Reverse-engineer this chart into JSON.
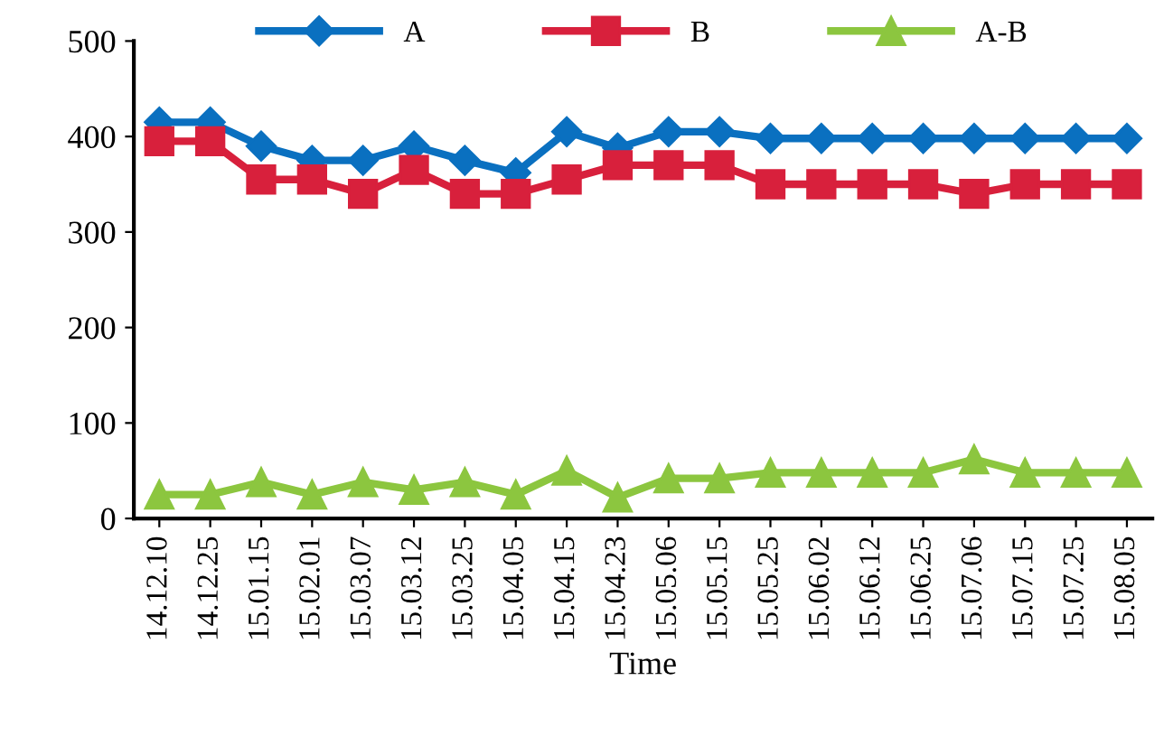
{
  "chart_data": {
    "type": "line",
    "xlabel": "Time",
    "categories": [
      "14.12.10",
      "14.12.25",
      "15.01.15",
      "15.02.01",
      "15.03.07",
      "15.03.12",
      "15.03.25",
      "15.04.05",
      "15.04.15",
      "15.04.23",
      "15.05.06",
      "15.05.15",
      "15.05.25",
      "15.06.02",
      "15.06.12",
      "15.06.25",
      "15.07.06",
      "15.07.15",
      "15.07.25",
      "15.08.05"
    ],
    "series": [
      {
        "name": "A",
        "color": "#0a70c0",
        "marker": "diamond",
        "values": [
          415,
          415,
          390,
          375,
          375,
          390,
          375,
          362,
          405,
          388,
          405,
          405,
          398,
          398,
          398,
          398,
          398,
          398,
          398,
          398
        ]
      },
      {
        "name": "B",
        "color": "#d8203c",
        "marker": "square",
        "values": [
          395,
          395,
          355,
          355,
          340,
          365,
          340,
          340,
          355,
          370,
          370,
          370,
          350,
          350,
          350,
          350,
          340,
          350,
          350,
          350
        ]
      },
      {
        "name": "A-B",
        "color": "#8cc63f",
        "marker": "triangle",
        "values": [
          25,
          25,
          38,
          25,
          38,
          30,
          38,
          25,
          50,
          22,
          42,
          42,
          48,
          48,
          48,
          48,
          62,
          48,
          48,
          48
        ]
      }
    ],
    "ylim": [
      0,
      500
    ],
    "yticks": [
      0,
      100,
      200,
      300,
      400,
      500
    ],
    "grid": false,
    "legend": "top"
  }
}
